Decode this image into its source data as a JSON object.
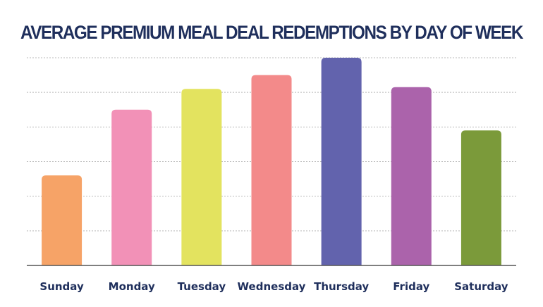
{
  "chart_data": {
    "type": "bar",
    "title": "AVERAGE PREMIUM MEAL DEAL REDEMPTIONS BY DAY OF WEEK",
    "xlabel": "",
    "ylabel": "",
    "categories": [
      "Sunday",
      "Monday",
      "Tuesday",
      "Wednesday",
      "Thursday",
      "Friday",
      "Saturday"
    ],
    "values": [
      2.6,
      4.5,
      5.1,
      5.5,
      6.0,
      5.15,
      3.9
    ],
    "colors": [
      "#f6a367",
      "#f291b7",
      "#e3e35f",
      "#f38a8a",
      "#6263ad",
      "#ab63ab",
      "#7b9a3a"
    ],
    "ylim": [
      0,
      6
    ],
    "y_gridlines": [
      1,
      2,
      3,
      4,
      5,
      6
    ],
    "grid": true,
    "legend": "none",
    "y_tick_labels_shown": false
  }
}
